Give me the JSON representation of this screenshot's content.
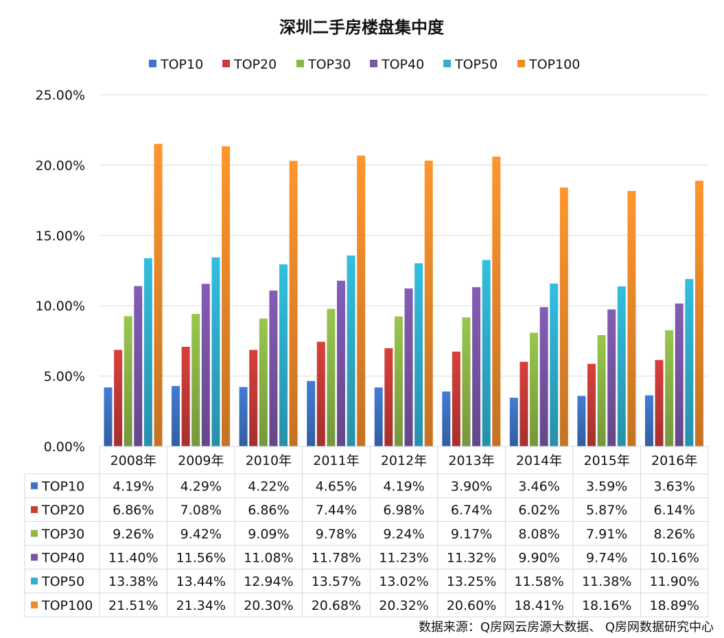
{
  "chart_data": {
    "type": "bar",
    "title": "深圳二手房楼盘集中度",
    "categories": [
      "2008年",
      "2009年",
      "2010年",
      "2011年",
      "2012年",
      "2013年",
      "2014年",
      "2015年",
      "2016年"
    ],
    "series": [
      {
        "name": "TOP10",
        "values": [
          4.19,
          4.29,
          4.22,
          4.65,
          4.19,
          3.9,
          3.46,
          3.59,
          3.63
        ],
        "labels": [
          "4.19%",
          "4.29%",
          "4.22%",
          "4.65%",
          "4.19%",
          "3.90%",
          "3.46%",
          "3.59%",
          "3.63%"
        ]
      },
      {
        "name": "TOP20",
        "values": [
          6.86,
          7.08,
          6.86,
          7.44,
          6.98,
          6.74,
          6.02,
          5.87,
          6.14
        ],
        "labels": [
          "6.86%",
          "7.08%",
          "6.86%",
          "7.44%",
          "6.98%",
          "6.74%",
          "6.02%",
          "5.87%",
          "6.14%"
        ]
      },
      {
        "name": "TOP30",
        "values": [
          9.26,
          9.42,
          9.09,
          9.78,
          9.24,
          9.17,
          8.08,
          7.91,
          8.26
        ],
        "labels": [
          "9.26%",
          "9.42%",
          "9.09%",
          "9.78%",
          "9.24%",
          "9.17%",
          "8.08%",
          "7.91%",
          "8.26%"
        ]
      },
      {
        "name": "TOP40",
        "values": [
          11.4,
          11.56,
          11.08,
          11.78,
          11.23,
          11.32,
          9.9,
          9.74,
          10.16
        ],
        "labels": [
          "11.40%",
          "11.56%",
          "11.08%",
          "11.78%",
          "11.23%",
          "11.32%",
          "9.90%",
          "9.74%",
          "10.16%"
        ]
      },
      {
        "name": "TOP50",
        "values": [
          13.38,
          13.44,
          12.94,
          13.57,
          13.02,
          13.25,
          11.58,
          11.38,
          11.9
        ],
        "labels": [
          "13.38%",
          "13.44%",
          "12.94%",
          "13.57%",
          "13.02%",
          "13.25%",
          "11.58%",
          "11.38%",
          "11.90%"
        ]
      },
      {
        "name": "TOP100",
        "values": [
          21.51,
          21.34,
          20.3,
          20.68,
          20.32,
          20.6,
          18.41,
          18.16,
          18.89
        ],
        "labels": [
          "21.51%",
          "21.34%",
          "20.30%",
          "20.68%",
          "20.32%",
          "20.60%",
          "18.41%",
          "18.16%",
          "18.89%"
        ]
      }
    ],
    "yticks": [
      "0.00%",
      "5.00%",
      "10.00%",
      "15.00%",
      "20.00%",
      "25.00%"
    ],
    "ylim": [
      0,
      25
    ],
    "grid": true,
    "legend_position": "top",
    "data_table": true,
    "colors": [
      "#3d73c3",
      "#c83b37",
      "#8db848",
      "#7a56a8",
      "#2fb0cf",
      "#f08b2a"
    ]
  },
  "source": "数据来源：Q房网云房源大数据、 Q房网数据研究中心"
}
